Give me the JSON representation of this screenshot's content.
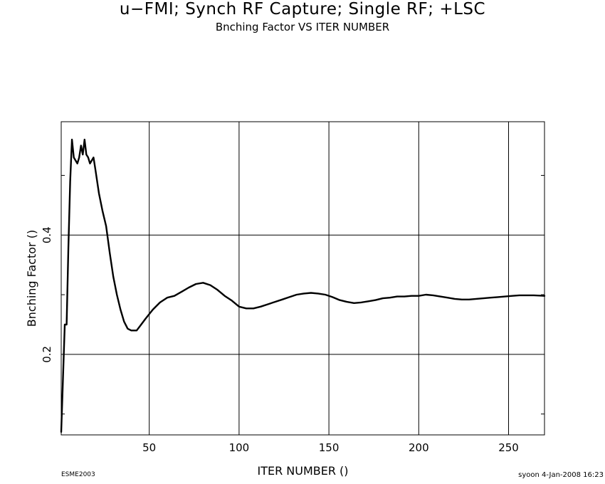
{
  "chart_data": {
    "type": "line",
    "title": "u−FMI; Synch RF Capture; Single RF; +LSC",
    "subtitle": "Bnching Factor VS ITER NUMBER",
    "xlabel": "ITER NUMBER ()",
    "ylabel": "Bnching Factor ()",
    "xlim": [
      1,
      270
    ],
    "ylim": [
      0.065,
      0.59
    ],
    "x_ticks": [
      50,
      100,
      150,
      200,
      250
    ],
    "y_ticks": [
      0.2,
      0.4
    ],
    "y_minor_ticks": [
      0.1,
      0.3,
      0.5
    ],
    "grid": true,
    "series": [
      {
        "points": [
          [
            1,
            0.07
          ],
          [
            2,
            0.16
          ],
          [
            3,
            0.25
          ],
          [
            4,
            0.25
          ],
          [
            5,
            0.38
          ],
          [
            6,
            0.49
          ],
          [
            7,
            0.56
          ],
          [
            8,
            0.53
          ],
          [
            9,
            0.525
          ],
          [
            10,
            0.52
          ],
          [
            11,
            0.53
          ],
          [
            12,
            0.55
          ],
          [
            13,
            0.535
          ],
          [
            14,
            0.56
          ],
          [
            15,
            0.535
          ],
          [
            16,
            0.53
          ],
          [
            17,
            0.52
          ],
          [
            18,
            0.525
          ],
          [
            19,
            0.53
          ],
          [
            20,
            0.51
          ],
          [
            22,
            0.47
          ],
          [
            24,
            0.44
          ],
          [
            26,
            0.415
          ],
          [
            28,
            0.37
          ],
          [
            30,
            0.33
          ],
          [
            32,
            0.3
          ],
          [
            34,
            0.275
          ],
          [
            36,
            0.255
          ],
          [
            38,
            0.243
          ],
          [
            40,
            0.24
          ],
          [
            43,
            0.24
          ],
          [
            45,
            0.248
          ],
          [
            48,
            0.26
          ],
          [
            52,
            0.275
          ],
          [
            56,
            0.287
          ],
          [
            60,
            0.295
          ],
          [
            64,
            0.298
          ],
          [
            68,
            0.305
          ],
          [
            72,
            0.312
          ],
          [
            76,
            0.318
          ],
          [
            80,
            0.32
          ],
          [
            84,
            0.316
          ],
          [
            88,
            0.308
          ],
          [
            92,
            0.298
          ],
          [
            96,
            0.29
          ],
          [
            100,
            0.28
          ],
          [
            104,
            0.277
          ],
          [
            108,
            0.277
          ],
          [
            112,
            0.28
          ],
          [
            116,
            0.284
          ],
          [
            120,
            0.288
          ],
          [
            124,
            0.292
          ],
          [
            128,
            0.296
          ],
          [
            132,
            0.3
          ],
          [
            136,
            0.302
          ],
          [
            140,
            0.303
          ],
          [
            144,
            0.302
          ],
          [
            148,
            0.3
          ],
          [
            152,
            0.296
          ],
          [
            156,
            0.291
          ],
          [
            160,
            0.288
          ],
          [
            164,
            0.286
          ],
          [
            168,
            0.287
          ],
          [
            172,
            0.289
          ],
          [
            176,
            0.291
          ],
          [
            180,
            0.294
          ],
          [
            184,
            0.295
          ],
          [
            188,
            0.297
          ],
          [
            192,
            0.297
          ],
          [
            196,
            0.298
          ],
          [
            200,
            0.298
          ],
          [
            204,
            0.3
          ],
          [
            208,
            0.299
          ],
          [
            212,
            0.297
          ],
          [
            216,
            0.295
          ],
          [
            220,
            0.293
          ],
          [
            224,
            0.292
          ],
          [
            228,
            0.292
          ],
          [
            232,
            0.293
          ],
          [
            236,
            0.294
          ],
          [
            240,
            0.295
          ],
          [
            244,
            0.296
          ],
          [
            248,
            0.297
          ],
          [
            252,
            0.298
          ],
          [
            256,
            0.299
          ],
          [
            260,
            0.299
          ],
          [
            264,
            0.299
          ],
          [
            270,
            0.298
          ]
        ]
      }
    ]
  },
  "footer": {
    "left": "ESME2003",
    "right": "syoon  4-Jan-2008 16:23"
  }
}
